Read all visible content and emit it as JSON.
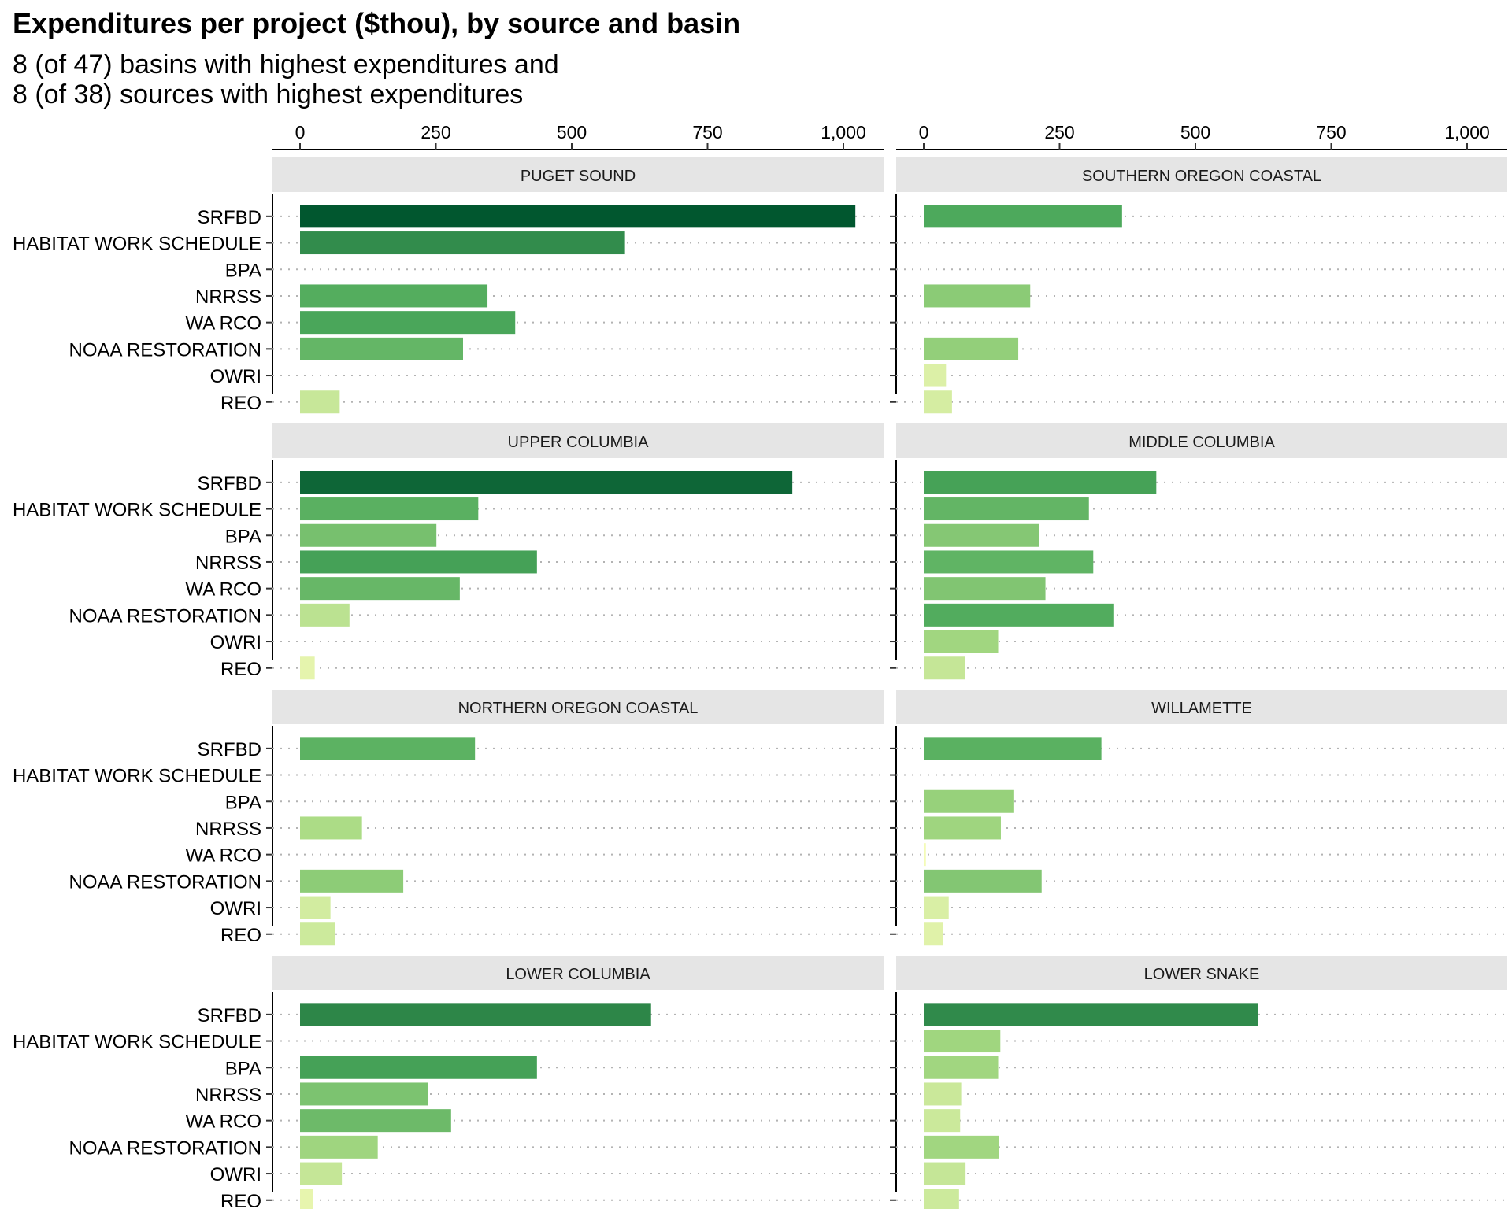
{
  "title": "Expenditures per project ($thou), by source and basin",
  "subtitle_lines": [
    "8 (of 47) basins with highest expenditures and",
    "8 (of 38) sources with highest expenditures"
  ],
  "chart_data": {
    "type": "bar",
    "orientation": "horizontal",
    "facet_layout": "4 rows x 2 columns",
    "x_axis_position": "top",
    "xlim": [
      0,
      1060
    ],
    "x_ticks": [
      0,
      250,
      500,
      750,
      1000
    ],
    "x_tick_labels": [
      "0",
      "250",
      "500",
      "750",
      "1,000"
    ],
    "gridlines": "dotted horizontal",
    "color_scale": "white-to-dark-green by value",
    "color_low": "#f7fcb9",
    "color_high": "#00562e",
    "categories": [
      "SRFBD",
      "HABITAT WORK SCHEDULE",
      "BPA",
      "NRRSS",
      "WA RCO",
      "NOAA RESTORATION",
      "OWRI",
      "REO"
    ],
    "facets": [
      {
        "name": "PUGET SOUND",
        "values": [
          1022,
          598,
          null,
          345,
          396,
          300,
          null,
          73
        ]
      },
      {
        "name": "SOUTHERN OREGON COASTAL",
        "values": [
          365,
          null,
          null,
          196,
          null,
          174,
          41,
          52
        ]
      },
      {
        "name": "UPPER COLUMBIA",
        "values": [
          906,
          328,
          251,
          436,
          294,
          91,
          null,
          27
        ]
      },
      {
        "name": "MIDDLE COLUMBIA",
        "values": [
          428,
          304,
          213,
          312,
          224,
          349,
          137,
          76
        ]
      },
      {
        "name": "NORTHERN OREGON COASTAL",
        "values": [
          322,
          null,
          null,
          114,
          null,
          190,
          56,
          65
        ]
      },
      {
        "name": "WILLAMETTE",
        "values": [
          327,
          null,
          165,
          142,
          4,
          217,
          46,
          35
        ]
      },
      {
        "name": "LOWER COLUMBIA",
        "values": [
          646,
          null,
          436,
          236,
          278,
          143,
          77,
          24
        ]
      },
      {
        "name": "LOWER SNAKE",
        "values": [
          615,
          141,
          137,
          69,
          67,
          138,
          77,
          65
        ]
      }
    ]
  }
}
